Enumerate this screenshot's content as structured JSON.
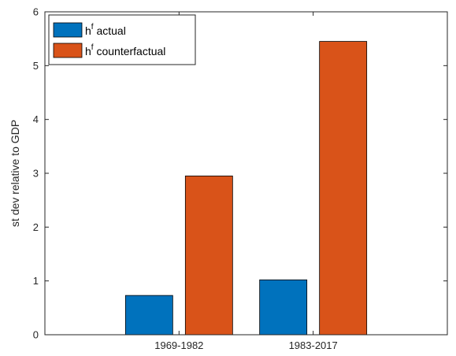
{
  "chart_data": {
    "type": "bar",
    "categories": [
      "1969-1982",
      "1983-2017"
    ],
    "series": [
      {
        "name_base": "h",
        "name_sup": "f",
        "name_rest": " actual",
        "color": "#0072BD",
        "values": [
          0.73,
          1.02
        ]
      },
      {
        "name_base": "h",
        "name_sup": "f",
        "name_rest": " counterfactual",
        "color": "#D95319",
        "values": [
          2.95,
          5.45
        ]
      }
    ],
    "title": "",
    "xlabel": "",
    "ylabel": "st dev relative to GDP",
    "ylim": [
      0,
      6
    ],
    "yticks": [
      0,
      1,
      2,
      3,
      4,
      5,
      6
    ],
    "grid": false,
    "legend_position": "top-left"
  }
}
